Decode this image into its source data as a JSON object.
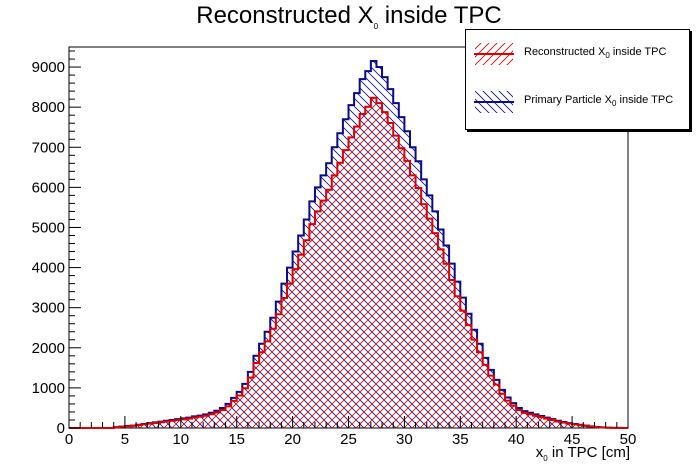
{
  "chart_data": {
    "type": "histogram",
    "title_main": "Reconstructed X",
    "title_sub": "0",
    "title_tail": " inside TPC",
    "xlabel_main": "x",
    "xlabel_sub": "0",
    "xlabel_tail": " in TPC [cm]",
    "xlim": [
      0,
      50
    ],
    "ylim": [
      0,
      9500
    ],
    "x_ticks": [
      0,
      5,
      10,
      15,
      20,
      25,
      30,
      35,
      40,
      45,
      50
    ],
    "y_ticks": [
      0,
      1000,
      2000,
      3000,
      4000,
      5000,
      6000,
      7000,
      8000,
      9000
    ],
    "bin_width": 0.5,
    "grid": false,
    "legend_position": "top-right",
    "series": [
      {
        "name_main": "Primary Particle X",
        "name_sub": "0",
        "name_tail": " inside TPC",
        "color": "#0a0a8c",
        "hatch": "diagonal-down",
        "values": [
          0,
          0,
          0,
          0,
          0,
          0,
          0,
          0,
          20,
          35,
          50,
          60,
          80,
          100,
          120,
          140,
          160,
          180,
          200,
          220,
          240,
          260,
          290,
          310,
          340,
          380,
          430,
          500,
          600,
          750,
          900,
          1100,
          1400,
          1800,
          2100,
          2400,
          2750,
          3150,
          3600,
          4000,
          4400,
          4800,
          5200,
          5650,
          6000,
          6300,
          6600,
          7000,
          7350,
          7700,
          8050,
          8350,
          8700,
          8900,
          9150,
          9000,
          8750,
          8450,
          8100,
          7750,
          7400,
          7000,
          6650,
          6200,
          5800,
          5400,
          4950,
          4550,
          4100,
          3650,
          3250,
          2850,
          2450,
          2100,
          1750,
          1450,
          1200,
          950,
          760,
          620,
          500,
          420,
          380,
          340,
          300,
          260,
          220,
          180,
          150,
          120,
          100,
          80,
          60,
          40,
          25,
          15,
          8,
          4,
          2,
          0
        ]
      },
      {
        "name_main": "Reconstructed X",
        "name_sub": "0",
        "name_tail": " inside TPC",
        "color": "#e00000",
        "hatch": "diagonal-up",
        "values": [
          0,
          0,
          0,
          0,
          0,
          0,
          0,
          0,
          18,
          30,
          45,
          55,
          72,
          90,
          108,
          126,
          144,
          162,
          180,
          198,
          216,
          234,
          261,
          279,
          306,
          342,
          387,
          450,
          540,
          675,
          810,
          990,
          1260,
          1620,
          1890,
          2160,
          2475,
          2835,
          3240,
          3600,
          3960,
          4320,
          4680,
          5085,
          5400,
          5670,
          5940,
          6300,
          6615,
          6930,
          7245,
          7515,
          7830,
          8010,
          8235,
          8100,
          7875,
          7605,
          7290,
          6975,
          6660,
          6300,
          5985,
          5580,
          5220,
          4860,
          4455,
          4095,
          3690,
          3285,
          2925,
          2565,
          2205,
          1890,
          1575,
          1305,
          1080,
          855,
          684,
          558,
          450,
          378,
          342,
          306,
          270,
          234,
          198,
          162,
          135,
          108,
          90,
          72,
          54,
          36,
          22,
          13,
          7,
          3,
          1,
          0
        ]
      }
    ]
  }
}
